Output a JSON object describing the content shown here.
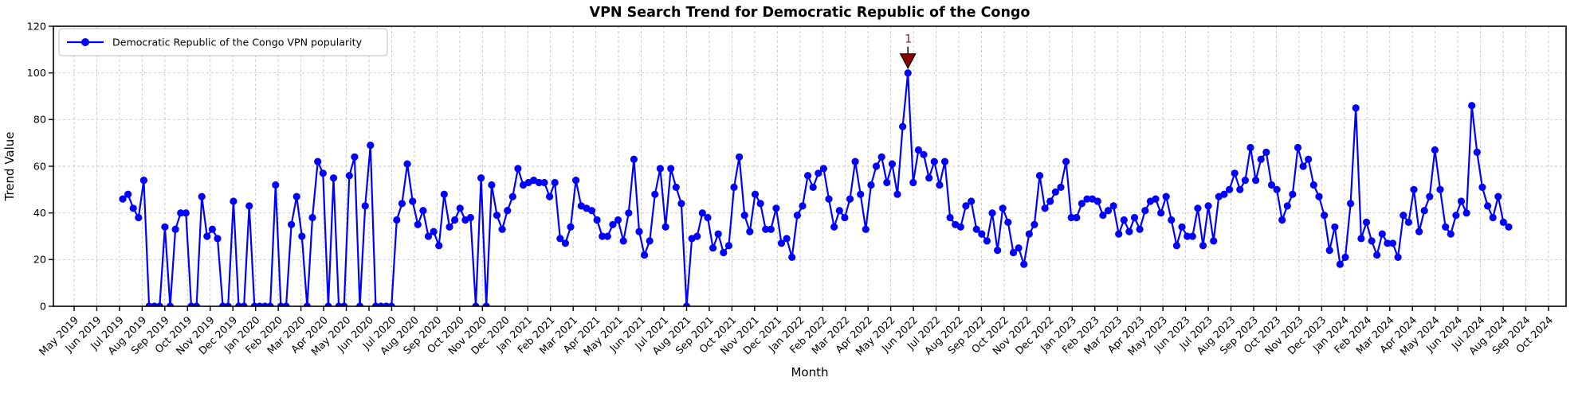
{
  "figure": {
    "background": "#ffffff"
  },
  "chart_data": {
    "type": "line",
    "title": "VPN Search Trend for Democratic Republic of the Congo",
    "xlabel": "Month",
    "ylabel": "Trend Value",
    "ylim": [
      0,
      120
    ],
    "yticks": [
      0,
      20,
      40,
      60,
      80,
      100,
      120
    ],
    "grid": true,
    "grid_style": "dashed",
    "x_tick_labels": [
      "May 2019",
      "Jun 2019",
      "Jul 2019",
      "Aug 2019",
      "Sep 2019",
      "Oct 2019",
      "Nov 2019",
      "Dec 2019",
      "Jan 2020",
      "Feb 2020",
      "Mar 2020",
      "Apr 2020",
      "May 2020",
      "Jun 2020",
      "Jul 2020",
      "Aug 2020",
      "Sep 2020",
      "Oct 2020",
      "Nov 2020",
      "Dec 2020",
      "Jan 2021",
      "Feb 2021",
      "Mar 2021",
      "Apr 2021",
      "May 2021",
      "Jun 2021",
      "Jul 2021",
      "Aug 2021",
      "Sep 2021",
      "Oct 2021",
      "Nov 2021",
      "Dec 2021",
      "Jan 2022",
      "Feb 2022",
      "Mar 2022",
      "Apr 2022",
      "May 2022",
      "Jun 2022",
      "Jul 2022",
      "Aug 2022",
      "Sep 2022",
      "Oct 2022",
      "Nov 2022",
      "Dec 2022",
      "Jan 2023",
      "Feb 2023",
      "Mar 2023",
      "Apr 2023",
      "May 2023",
      "Jun 2023",
      "Jul 2023",
      "Aug 2023",
      "Sep 2023",
      "Oct 2023",
      "Nov 2023",
      "Dec 2023",
      "Jan 2024",
      "Feb 2024",
      "Mar 2024",
      "Apr 2024",
      "May 2024",
      "Jun 2024",
      "Jul 2024",
      "Aug 2024",
      "Sep 2024",
      "Oct 2024"
    ],
    "legend": {
      "position": "upper left",
      "entries": [
        "Democratic Republic of the Congo VPN popularity"
      ]
    },
    "series": [
      {
        "name": "Democratic Republic of the Congo VPN popularity",
        "cadence": "weekly",
        "first_point_near": "Jul 2019",
        "last_point_near": "Aug 2024",
        "values": [
          46,
          48,
          42,
          38,
          54,
          0,
          0,
          0,
          34,
          0,
          33,
          40,
          40,
          0,
          0,
          47,
          30,
          33,
          29,
          0,
          0,
          45,
          0,
          0,
          43,
          0,
          0,
          0,
          0,
          52,
          0,
          0,
          35,
          47,
          30,
          0,
          38,
          62,
          57,
          0,
          55,
          0,
          0,
          56,
          64,
          0,
          43,
          69,
          0,
          0,
          0,
          0,
          37,
          44,
          61,
          45,
          35,
          41,
          30,
          32,
          26,
          48,
          34,
          37,
          42,
          37,
          38,
          0,
          55,
          0,
          52,
          39,
          33,
          41,
          47,
          59,
          52,
          53,
          54,
          53,
          53,
          47,
          53,
          29,
          27,
          34,
          54,
          43,
          42,
          41,
          37,
          30,
          30,
          35,
          37,
          28,
          40,
          63,
          32,
          22,
          28,
          48,
          59,
          34,
          59,
          51,
          44,
          0,
          29,
          30,
          40,
          38,
          25,
          31,
          23,
          26,
          51,
          64,
          39,
          32,
          48,
          44,
          33,
          33,
          42,
          27,
          29,
          21,
          39,
          43,
          56,
          51,
          57,
          59,
          46,
          34,
          41,
          38,
          46,
          62,
          48,
          33,
          52,
          60,
          64,
          53,
          61,
          48,
          77,
          100,
          53,
          67,
          65,
          55,
          62,
          52,
          62,
          38,
          35,
          34,
          43,
          45,
          33,
          31,
          28,
          40,
          24,
          42,
          36,
          23,
          25,
          18,
          31,
          35,
          56,
          42,
          45,
          49,
          51,
          62,
          38,
          38,
          44,
          46,
          46,
          45,
          39,
          41,
          43,
          31,
          37,
          32,
          38,
          33,
          41,
          45,
          46,
          40,
          47,
          37,
          26,
          34,
          30,
          30,
          42,
          26,
          43,
          28,
          47,
          48,
          50,
          57,
          50,
          54,
          68,
          54,
          63,
          66,
          52,
          50,
          37,
          43,
          48,
          68,
          60,
          63,
          52,
          47,
          39,
          24,
          34,
          18,
          21,
          44,
          85,
          29,
          36,
          28,
          22,
          31,
          27,
          27,
          21,
          39,
          36,
          50,
          32,
          41,
          47,
          67,
          50,
          34,
          31,
          39,
          45,
          40,
          86,
          66,
          51,
          43,
          38,
          47,
          36,
          34
        ]
      }
    ],
    "annotations": [
      {
        "label": "1",
        "at": "series-maximum",
        "value": 100,
        "near_month": "Jun 2022"
      }
    ],
    "colors": {
      "line": "#0000ff",
      "marker": "#0000ff",
      "annotation_text": "#8b1a1a",
      "annotation_marker": "#8b0000",
      "annotation_marker_edge": "#000000",
      "grid": "#c3c3c3",
      "axis": "#000000",
      "legend_border": "#c9c9c9",
      "legend_background": "#ffffff"
    }
  }
}
